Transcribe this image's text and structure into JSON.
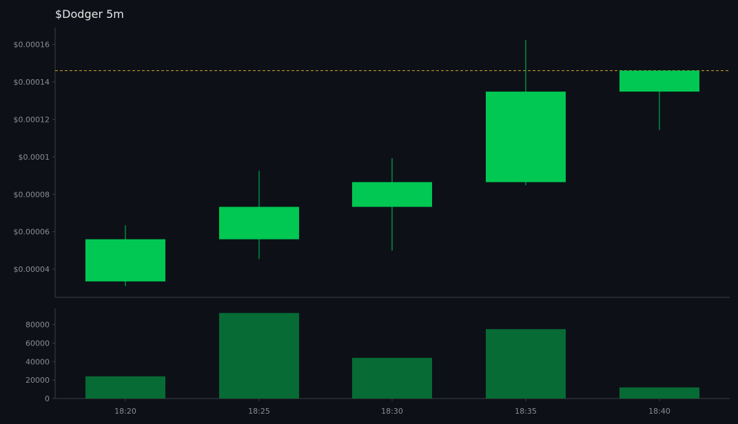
{
  "chart_data": {
    "type": "candlestick",
    "title": "$Dodger 5m",
    "x_tick_labels": [
      "18:20",
      "18:25",
      "18:30",
      "18:35",
      "18:40"
    ],
    "price_axis": {
      "ticks": [
        4e-05,
        6e-05,
        8e-05,
        0.0001,
        0.00012,
        0.00014,
        0.00016
      ],
      "tick_labels": [
        "$0.00004",
        "$0.00006",
        "$0.00008",
        "$0.0001",
        "$0.00012",
        "$0.00014",
        "$0.00016"
      ],
      "ylim": [
        2.5e-05,
        0.000169
      ]
    },
    "volume_axis": {
      "ticks": [
        0,
        20000,
        40000,
        60000,
        80000
      ],
      "tick_labels": [
        "0",
        "20000",
        "40000",
        "60000",
        "80000"
      ],
      "ylim": [
        0,
        97500
      ]
    },
    "candles": [
      {
        "time": "18:20",
        "open": 3.35e-05,
        "high": 6.35e-05,
        "low": 3.1e-05,
        "close": 5.6e-05
      },
      {
        "time": "18:25",
        "open": 5.6e-05,
        "high": 9.25e-05,
        "low": 4.55e-05,
        "close": 7.33e-05
      },
      {
        "time": "18:30",
        "open": 7.33e-05,
        "high": 9.93e-05,
        "low": 5e-05,
        "close": 8.65e-05
      },
      {
        "time": "18:35",
        "open": 8.65e-05,
        "high": 0.0001623,
        "low": 8.48e-05,
        "close": 0.0001348
      },
      {
        "time": "18:40",
        "open": 0.0001348,
        "high": 0.000146,
        "low": 0.0001143,
        "close": 0.000146
      }
    ],
    "volume": [
      24000,
      92500,
      44000,
      75000,
      12000
    ],
    "last_price": 0.000146,
    "grid": false,
    "colors": {
      "up": "#00c853",
      "wick": "#00c853",
      "volume": "#066b35",
      "last_price_line": "#d4a72c",
      "axis": "#3a3f45",
      "background": "#0d1117"
    }
  }
}
